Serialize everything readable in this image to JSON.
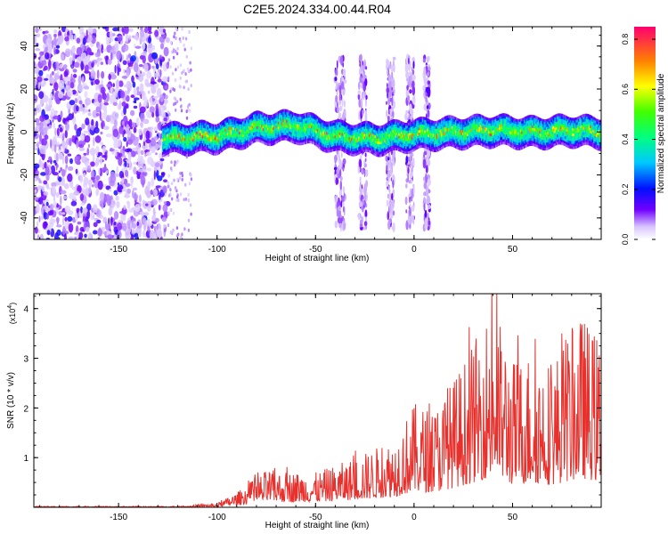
{
  "title": "C2E5.2024.334.00.44.R04",
  "chart_data": [
    {
      "type": "heatmap",
      "xlabel": "Height of straight line (km)",
      "ylabel": "Frequency (Hz)",
      "xlim": [
        -193,
        95
      ],
      "ylim": [
        -50,
        49
      ],
      "x_ticks": [
        -150,
        -100,
        -50,
        0,
        50
      ],
      "y_ticks": [
        -40,
        -20,
        0,
        20,
        40
      ],
      "colorbar": {
        "label": "Normalized spectral amplitude",
        "range": [
          0,
          0.85
        ],
        "ticks": [
          "0.0",
          "0.2",
          "0.4",
          "0.6",
          "0.8"
        ],
        "tick_values": [
          0,
          0.2,
          0.4,
          0.6,
          0.8
        ]
      },
      "noise_region_x": [
        -193,
        -125
      ],
      "signal_band_x": [
        -128,
        95
      ],
      "signal_center_hz": [
        {
          "x": -128,
          "f": -3
        },
        {
          "x": -100,
          "f": -2
        },
        {
          "x": -80,
          "f": 2
        },
        {
          "x": -60,
          "f": 3
        },
        {
          "x": -40,
          "f": -2
        },
        {
          "x": -20,
          "f": -3
        },
        {
          "x": 0,
          "f": -1
        },
        {
          "x": 20,
          "f": 0
        },
        {
          "x": 40,
          "f": 1
        },
        {
          "x": 60,
          "f": 0
        },
        {
          "x": 80,
          "f": 1
        },
        {
          "x": 95,
          "f": 0
        }
      ],
      "broadband_x_ranges": [
        [
          -40,
          -35
        ],
        [
          -28,
          -24
        ],
        [
          -14,
          -10
        ],
        [
          -4,
          0
        ],
        [
          5,
          8
        ]
      ]
    },
    {
      "type": "line",
      "xlabel": "Height of straight line (km)",
      "ylabel": "SNR (10 * v/v)",
      "multiplier_label": "(x10",
      "multiplier_exp": "4",
      "multiplier_close": ")",
      "xlim": [
        -193,
        95
      ],
      "ylim": [
        0,
        4.3
      ],
      "x_ticks": [
        -150,
        -100,
        -50,
        0,
        50
      ],
      "y_ticks": [
        1,
        2,
        3,
        4
      ],
      "color": "#e8312d",
      "envelope": [
        {
          "x": -193,
          "max": 0.02
        },
        {
          "x": -120,
          "max": 0.02
        },
        {
          "x": -100,
          "max": 0.08
        },
        {
          "x": -90,
          "max": 0.3
        },
        {
          "x": -75,
          "max": 0.75
        },
        {
          "x": -50,
          "max": 0.7
        },
        {
          "x": -30,
          "max": 1.0
        },
        {
          "x": -10,
          "max": 1.4
        },
        {
          "x": 0,
          "max": 2.1
        },
        {
          "x": 10,
          "max": 2.0
        },
        {
          "x": 20,
          "max": 2.6
        },
        {
          "x": 30,
          "max": 3.3
        },
        {
          "x": 40,
          "max": 4.2
        },
        {
          "x": 50,
          "max": 3.0
        },
        {
          "x": 60,
          "max": 3.2
        },
        {
          "x": 70,
          "max": 3.0
        },
        {
          "x": 85,
          "max": 3.9
        },
        {
          "x": 95,
          "max": 3.4
        }
      ]
    }
  ]
}
